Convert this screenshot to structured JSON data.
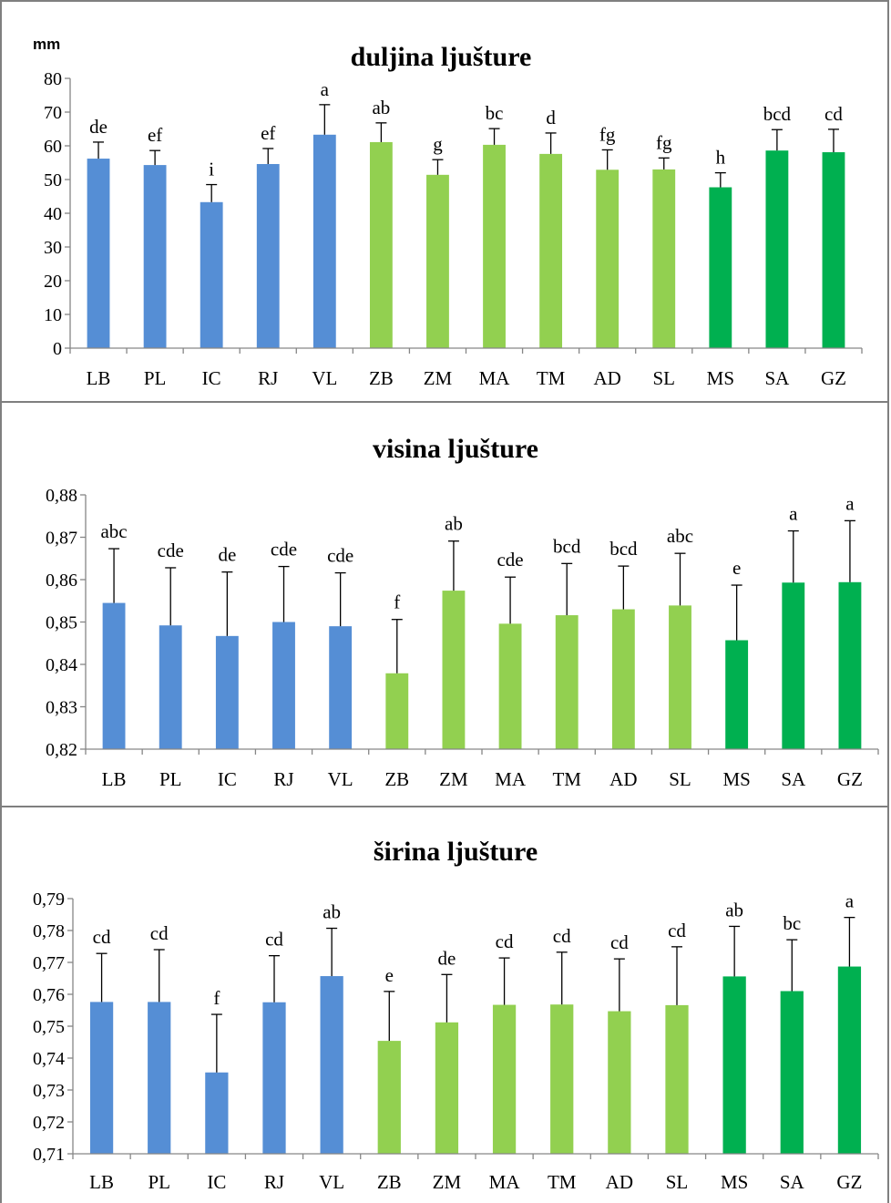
{
  "colors": {
    "group1": "#558ED5",
    "group2": "#92D050",
    "group3": "#00B050",
    "axis": "#868686",
    "error": "#000000"
  },
  "chart_data": [
    {
      "type": "bar",
      "title": "duljina ljušture",
      "unit": "mm",
      "categories": [
        "LB",
        "PL",
        "IC",
        "RJ",
        "VL",
        "ZB",
        "ZM",
        "MA",
        "TM",
        "AD",
        "SL",
        "MS",
        "SA",
        "GZ"
      ],
      "values": [
        56.2,
        54.3,
        43.3,
        54.6,
        63.3,
        61.1,
        51.4,
        60.3,
        57.6,
        52.9,
        53.0,
        47.7,
        58.6,
        58.1
      ],
      "errors": [
        4.9,
        4.3,
        5.2,
        4.6,
        8.9,
        5.7,
        4.5,
        4.8,
        6.2,
        5.9,
        3.4,
        4.3,
        6.2,
        6.8
      ],
      "significance": [
        "de",
        "ef",
        "i",
        "ef",
        "a",
        "ab",
        "g",
        "bc",
        "d",
        "fg",
        "fg",
        "h",
        "bcd",
        "cd"
      ],
      "groups": [
        1,
        1,
        1,
        1,
        1,
        2,
        2,
        2,
        2,
        2,
        2,
        3,
        3,
        3
      ],
      "ylim": [
        0,
        80
      ],
      "yticks": [
        "0",
        "10",
        "20",
        "30",
        "40",
        "50",
        "60",
        "70",
        "80"
      ],
      "ytick_values": [
        0,
        10,
        20,
        30,
        40,
        50,
        60,
        70,
        80
      ]
    },
    {
      "type": "bar",
      "title": "visina ljušture",
      "unit": "",
      "categories": [
        "LB",
        "PL",
        "IC",
        "RJ",
        "VL",
        "ZB",
        "ZM",
        "MA",
        "TM",
        "AD",
        "SL",
        "MS",
        "SA",
        "GZ"
      ],
      "values": [
        0.8545,
        0.8492,
        0.8467,
        0.85,
        0.849,
        0.8379,
        0.8574,
        0.8496,
        0.8516,
        0.853,
        0.8539,
        0.8457,
        0.8593,
        0.8594
      ],
      "errors": [
        0.0128,
        0.0136,
        0.0151,
        0.0131,
        0.0126,
        0.0127,
        0.0117,
        0.011,
        0.0122,
        0.0102,
        0.0123,
        0.013,
        0.0122,
        0.0145
      ],
      "significance": [
        "abc",
        "cde",
        "de",
        "cde",
        "cde",
        "f",
        "ab",
        "cde",
        "bcd",
        "bcd",
        "abc",
        "e",
        "a",
        "a"
      ],
      "groups": [
        1,
        1,
        1,
        1,
        1,
        2,
        2,
        2,
        2,
        2,
        2,
        3,
        3,
        3
      ],
      "ylim": [
        0.82,
        0.88
      ],
      "yticks": [
        "0,82",
        "0,83",
        "0,84",
        "0,85",
        "0,86",
        "0,87",
        "0,88"
      ],
      "ytick_values": [
        0.82,
        0.83,
        0.84,
        0.85,
        0.86,
        0.87,
        0.88
      ]
    },
    {
      "type": "bar",
      "title": "širina ljušture",
      "unit": "",
      "categories": [
        "LB",
        "PL",
        "IC",
        "RJ",
        "VL",
        "ZB",
        "ZM",
        "MA",
        "TM",
        "AD",
        "SL",
        "MS",
        "SA",
        "GZ"
      ],
      "values": [
        0.7576,
        0.7576,
        0.7355,
        0.7575,
        0.7657,
        0.7454,
        0.7512,
        0.7567,
        0.7568,
        0.7547,
        0.7566,
        0.7656,
        0.761,
        0.7687
      ],
      "errors": [
        0.0152,
        0.0164,
        0.0182,
        0.0146,
        0.015,
        0.0155,
        0.015,
        0.0147,
        0.0164,
        0.0164,
        0.0183,
        0.0157,
        0.0161,
        0.0154
      ],
      "significance": [
        "cd",
        "cd",
        "f",
        "cd",
        "ab",
        "e",
        "de",
        "cd",
        "cd",
        "cd",
        "cd",
        "ab",
        "bc",
        "a"
      ],
      "groups": [
        1,
        1,
        1,
        1,
        1,
        2,
        2,
        2,
        2,
        2,
        2,
        3,
        3,
        3
      ],
      "ylim": [
        0.71,
        0.79
      ],
      "yticks": [
        "0,71",
        "0,72",
        "0,73",
        "0,74",
        "0,75",
        "0,76",
        "0,77",
        "0,78",
        "0,79"
      ],
      "ytick_values": [
        0.71,
        0.72,
        0.73,
        0.74,
        0.75,
        0.76,
        0.77,
        0.78,
        0.79
      ]
    }
  ]
}
